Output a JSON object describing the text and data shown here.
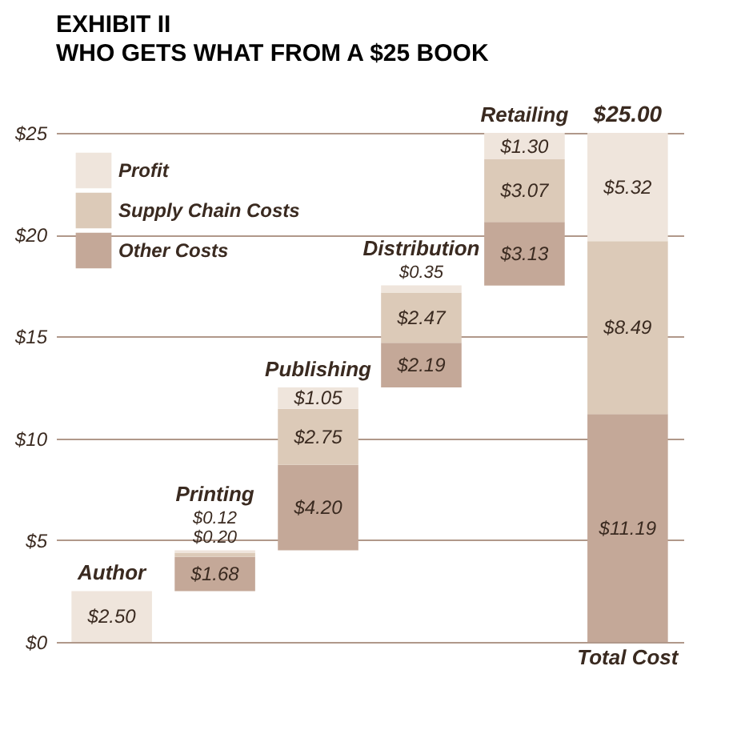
{
  "chart_data": {
    "type": "bar",
    "title": "EXHIBIT II",
    "subtitle": "WHO GETS WHAT FROM A $25 BOOK",
    "categories": [
      "Author",
      "Printing",
      "Publishing",
      "Distribution",
      "Retailing",
      "Total Cost"
    ],
    "series": [
      {
        "name": "Other Costs",
        "color": "#c4a898",
        "base": [
          null,
          2.5,
          4.5,
          12.5,
          17.5,
          0
        ],
        "values": [
          null,
          1.68,
          4.2,
          2.19,
          3.13,
          11.19
        ],
        "value_labels": [
          null,
          "$1.68",
          "$4.20",
          "$2.19",
          "$3.13",
          "$11.19"
        ]
      },
      {
        "name": "Supply Chain Costs",
        "color": "#dccab8",
        "base": [
          null,
          4.18,
          8.7,
          14.69,
          20.63,
          11.19
        ],
        "values": [
          null,
          0.2,
          2.75,
          2.47,
          3.07,
          8.49
        ],
        "value_labels": [
          null,
          "$0.20",
          "$2.75",
          "$2.47",
          "$3.07",
          "$8.49"
        ]
      },
      {
        "name": "Profit",
        "color": "#efe5dc",
        "base": [
          0,
          4.38,
          11.45,
          17.16,
          23.7,
          19.68
        ],
        "values": [
          2.5,
          0.12,
          1.05,
          0.35,
          1.3,
          5.32
        ],
        "value_labels": [
          "$2.50",
          "$0.12",
          "$1.05",
          "$0.35",
          "$1.30",
          "$5.32"
        ]
      }
    ],
    "totals": [
      null,
      null,
      null,
      null,
      null,
      "$25.00"
    ],
    "ylim": [
      0,
      25
    ],
    "yticks": [
      {
        "value": 0,
        "label": "$0"
      },
      {
        "value": 5,
        "label": "$5"
      },
      {
        "value": 10,
        "label": "$10"
      },
      {
        "value": 15,
        "label": "$15"
      },
      {
        "value": 20,
        "label": "$20"
      },
      {
        "value": 25,
        "label": "$25"
      }
    ],
    "grid": "y",
    "legend": "top left",
    "tick_labels": "y"
  }
}
